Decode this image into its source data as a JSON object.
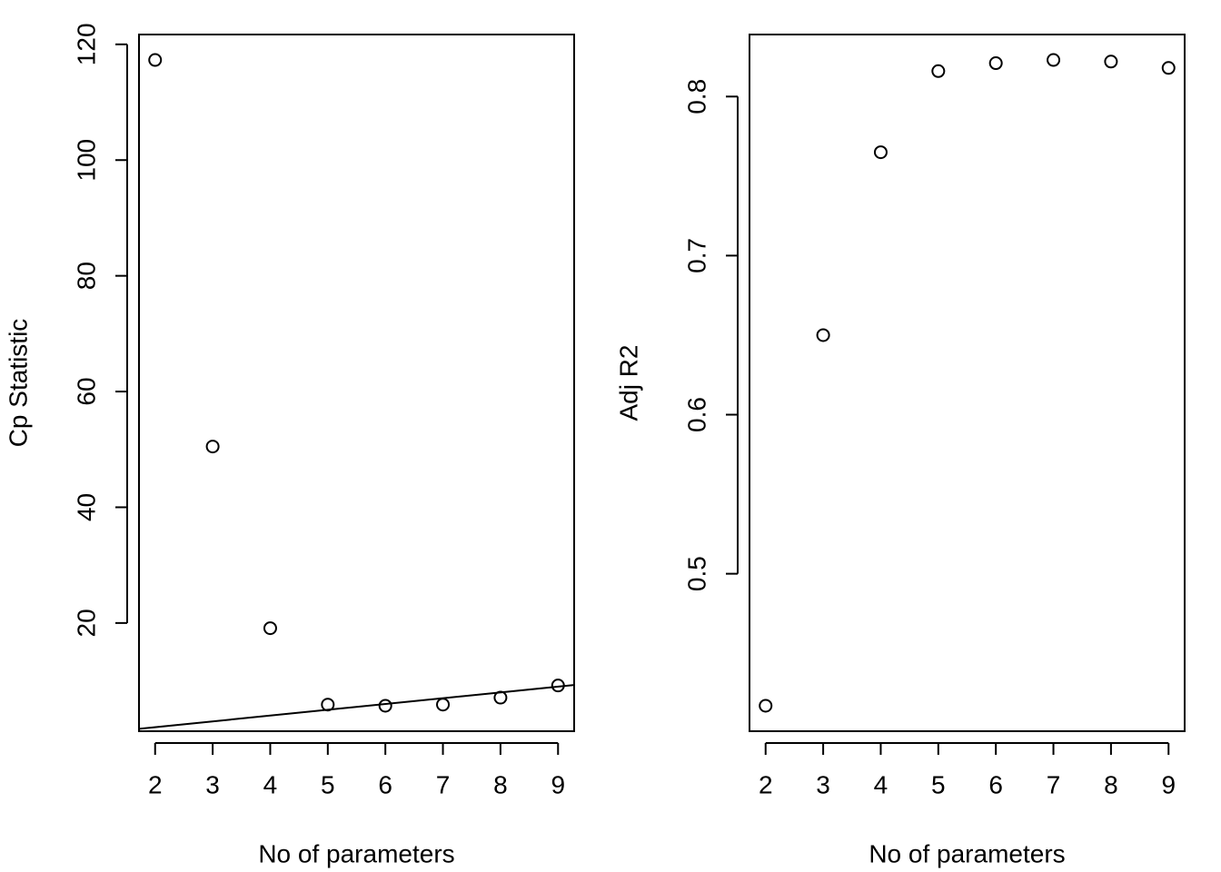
{
  "chart_data": [
    {
      "type": "scatter",
      "x_label": "No of parameters",
      "y_label": "Cp Statistic",
      "x": [
        2,
        3,
        4,
        5,
        6,
        7,
        8,
        9
      ],
      "values": [
        117.3,
        50.5,
        19.1,
        5.9,
        5.7,
        5.9,
        7.1,
        9.2
      ],
      "xlim": [
        1.72,
        9.28
      ],
      "ylim": [
        1.3,
        121.7
      ],
      "xticks": [
        2,
        3,
        4,
        5,
        6,
        7,
        8,
        9
      ],
      "yticks": [
        20,
        40,
        60,
        80,
        100,
        120
      ],
      "reference_line": {
        "intercept": 0,
        "slope": 1
      }
    },
    {
      "type": "scatter",
      "x_label": "No of parameters",
      "y_label": "Adj R2",
      "x": [
        2,
        3,
        4,
        5,
        6,
        7,
        8,
        9
      ],
      "values": [
        0.417,
        0.65,
        0.765,
        0.816,
        0.821,
        0.823,
        0.822,
        0.818
      ],
      "xlim": [
        1.72,
        9.28
      ],
      "ylim": [
        0.401,
        0.839
      ],
      "xticks": [
        2,
        3,
        4,
        5,
        6,
        7,
        8,
        9
      ],
      "yticks": [
        0.5,
        0.6,
        0.7,
        0.8
      ]
    }
  ]
}
